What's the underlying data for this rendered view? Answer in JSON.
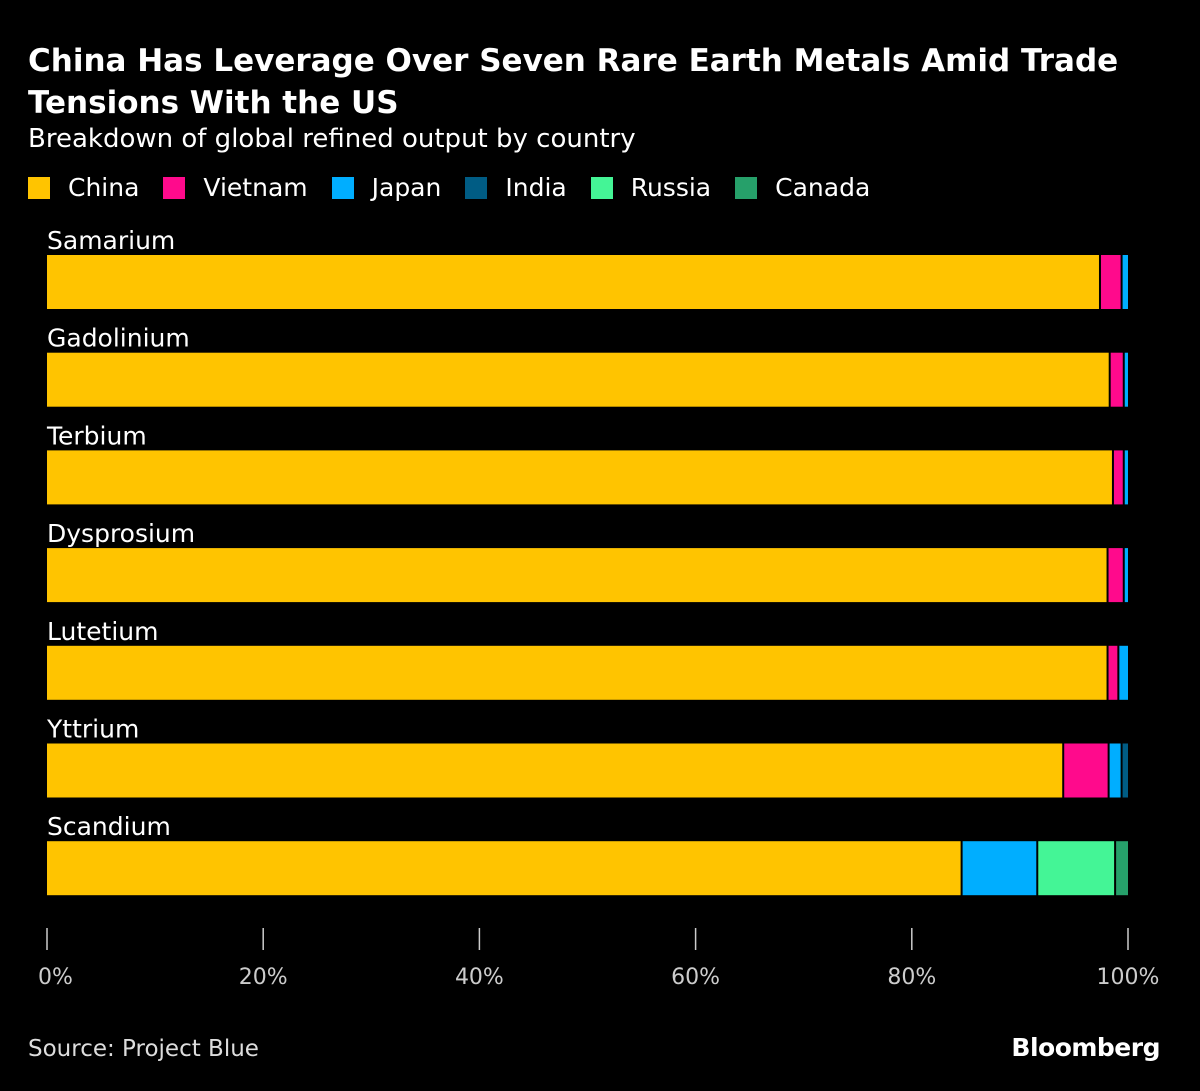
{
  "chart_data": {
    "type": "bar",
    "orientation": "horizontal",
    "stacked": true,
    "title": "China Has Leverage Over Seven Rare Earth Metals Amid Trade Tensions With the US",
    "subtitle": "Breakdown of global refined output by country",
    "categories": [
      "Samarium",
      "Gadolinium",
      "Terbium",
      "Dysprosium",
      "Lutetium",
      "Yttrium",
      "Scandium"
    ],
    "series": [
      {
        "name": "China",
        "color": "#ffc400",
        "values": [
          97.5,
          98.4,
          98.7,
          98.2,
          98.2,
          94.1,
          84.7
        ]
      },
      {
        "name": "Vietnam",
        "color": "#ff0a8c",
        "values": [
          2.0,
          1.3,
          1.0,
          1.5,
          1.0,
          4.2,
          0
        ]
      },
      {
        "name": "Japan",
        "color": "#00aeff",
        "values": [
          0.5,
          0.3,
          0.3,
          0.3,
          0.8,
          1.2,
          7.0
        ]
      },
      {
        "name": "India",
        "color": "#005c84",
        "values": [
          0,
          0,
          0,
          0,
          0,
          0.5,
          0
        ]
      },
      {
        "name": "Russia",
        "color": "#44f596",
        "values": [
          0,
          0,
          0,
          0,
          0,
          0,
          7.2
        ]
      },
      {
        "name": "Canada",
        "color": "#26a06a",
        "values": [
          0,
          0,
          0,
          0,
          0,
          0,
          1.1
        ]
      }
    ],
    "xlim": [
      0,
      100
    ],
    "xticks": [
      "0%",
      "20%",
      "40%",
      "60%",
      "80%",
      "100%"
    ],
    "xtick_values": [
      0,
      20,
      40,
      60,
      80,
      100
    ],
    "legend_position": "top-left",
    "grid": false
  },
  "footer": {
    "source": "Source: Project Blue",
    "logo": "Bloomberg"
  }
}
